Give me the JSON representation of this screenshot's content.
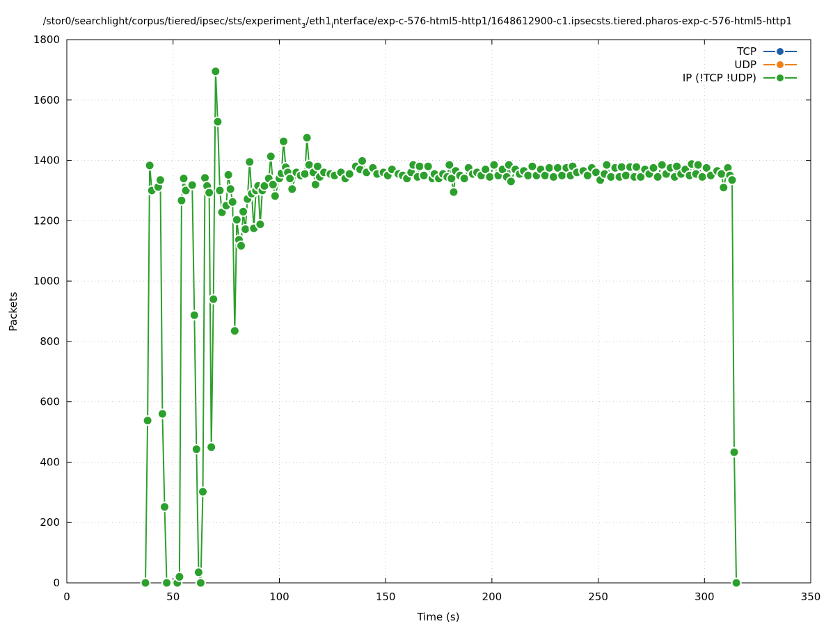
{
  "chart_data": {
    "type": "line",
    "title": "/stor0/searchlight/corpus/tiered/ipsec/sts/experiment",
    "title_sub": "3",
    "title_mid": "/eth1",
    "title_sub2": "i",
    "title_tail": "nterface/exp-c-576-html5-http1/1648612900-c1.ipsecsts.tiered.pharos-exp-c-576-html5-http1",
    "xlabel": "Time (s)",
    "ylabel": "Packets",
    "xlim": [
      0,
      350
    ],
    "ylim": [
      0,
      1800
    ],
    "x_ticks": [
      "0",
      "50",
      "100",
      "150",
      "200",
      "250",
      "300",
      "350"
    ],
    "y_ticks": [
      "0",
      "200",
      "400",
      "600",
      "800",
      "1000",
      "1200",
      "1400",
      "1600",
      "1800"
    ],
    "grid": true,
    "legend_position": "top-right",
    "series": [
      {
        "name": "TCP",
        "color": "#1f5fa8",
        "points": []
      },
      {
        "name": "UDP",
        "color": "#f07f1a",
        "points": []
      },
      {
        "name": "IP (!TCP  !UDP)",
        "color": "#2ca02c",
        "points": [
          [
            37,
            0
          ],
          [
            38,
            538
          ],
          [
            39,
            1383
          ],
          [
            40,
            1300
          ],
          [
            43,
            1312
          ],
          [
            44,
            1335
          ],
          [
            45,
            560
          ],
          [
            46,
            252
          ],
          [
            47,
            0
          ],
          [
            52,
            0
          ],
          [
            53,
            20
          ],
          [
            54,
            1267
          ],
          [
            55,
            1340
          ],
          [
            56,
            1300
          ],
          [
            59,
            1318
          ],
          [
            60,
            887
          ],
          [
            61,
            443
          ],
          [
            62,
            35
          ],
          [
            63,
            0
          ],
          [
            64,
            302
          ],
          [
            65,
            1342
          ],
          [
            66,
            1315
          ],
          [
            67,
            1293
          ],
          [
            68,
            450
          ],
          [
            69,
            940
          ],
          [
            70,
            1695
          ],
          [
            71,
            1528
          ],
          [
            72,
            1300
          ],
          [
            73,
            1228
          ],
          [
            75,
            1250
          ],
          [
            76,
            1352
          ],
          [
            77,
            1305
          ],
          [
            78,
            1262
          ],
          [
            79,
            835
          ],
          [
            80,
            1203
          ],
          [
            81,
            1137
          ],
          [
            82,
            1117
          ],
          [
            83,
            1230
          ],
          [
            84,
            1172
          ],
          [
            85,
            1272
          ],
          [
            86,
            1395
          ],
          [
            87,
            1290
          ],
          [
            88,
            1175
          ],
          [
            89,
            1300
          ],
          [
            90,
            1315
          ],
          [
            91,
            1188
          ],
          [
            92,
            1300
          ],
          [
            93,
            1315
          ],
          [
            95,
            1340
          ],
          [
            96,
            1413
          ],
          [
            97,
            1320
          ],
          [
            98,
            1282
          ],
          [
            100,
            1340
          ],
          [
            101,
            1357
          ],
          [
            102,
            1463
          ],
          [
            103,
            1377
          ],
          [
            104,
            1360
          ],
          [
            105,
            1340
          ],
          [
            106,
            1305
          ],
          [
            108,
            1360
          ],
          [
            110,
            1350
          ],
          [
            112,
            1355
          ],
          [
            113,
            1475
          ],
          [
            114,
            1385
          ],
          [
            116,
            1360
          ],
          [
            117,
            1320
          ],
          [
            118,
            1380
          ],
          [
            119,
            1345
          ],
          [
            121,
            1360
          ],
          [
            124,
            1355
          ],
          [
            126,
            1350
          ],
          [
            129,
            1360
          ],
          [
            131,
            1340
          ],
          [
            133,
            1355
          ],
          [
            136,
            1380
          ],
          [
            138,
            1370
          ],
          [
            139,
            1398
          ],
          [
            141,
            1360
          ],
          [
            144,
            1375
          ],
          [
            146,
            1355
          ],
          [
            149,
            1360
          ],
          [
            151,
            1350
          ],
          [
            153,
            1370
          ],
          [
            156,
            1355
          ],
          [
            158,
            1350
          ],
          [
            160,
            1340
          ],
          [
            162,
            1360
          ],
          [
            163,
            1385
          ],
          [
            165,
            1345
          ],
          [
            166,
            1380
          ],
          [
            168,
            1350
          ],
          [
            170,
            1380
          ],
          [
            172,
            1340
          ],
          [
            173,
            1355
          ],
          [
            175,
            1340
          ],
          [
            177,
            1355
          ],
          [
            179,
            1345
          ],
          [
            180,
            1385
          ],
          [
            181,
            1340
          ],
          [
            182,
            1295
          ],
          [
            183,
            1365
          ],
          [
            185,
            1350
          ],
          [
            187,
            1340
          ],
          [
            189,
            1375
          ],
          [
            191,
            1355
          ],
          [
            193,
            1360
          ],
          [
            195,
            1350
          ],
          [
            197,
            1370
          ],
          [
            199,
            1345
          ],
          [
            201,
            1385
          ],
          [
            203,
            1350
          ],
          [
            205,
            1370
          ],
          [
            207,
            1345
          ],
          [
            208,
            1385
          ],
          [
            209,
            1330
          ],
          [
            211,
            1370
          ],
          [
            213,
            1355
          ],
          [
            215,
            1365
          ],
          [
            217,
            1350
          ],
          [
            219,
            1380
          ],
          [
            221,
            1350
          ],
          [
            223,
            1370
          ],
          [
            225,
            1350
          ],
          [
            227,
            1375
          ],
          [
            229,
            1345
          ],
          [
            231,
            1375
          ],
          [
            233,
            1350
          ],
          [
            235,
            1375
          ],
          [
            237,
            1350
          ],
          [
            238,
            1380
          ],
          [
            240,
            1360
          ],
          [
            243,
            1365
          ],
          [
            245,
            1350
          ],
          [
            247,
            1375
          ],
          [
            249,
            1360
          ],
          [
            251,
            1335
          ],
          [
            253,
            1355
          ],
          [
            254,
            1385
          ],
          [
            256,
            1345
          ],
          [
            258,
            1375
          ],
          [
            260,
            1345
          ],
          [
            261,
            1378
          ],
          [
            263,
            1350
          ],
          [
            265,
            1378
          ],
          [
            267,
            1345
          ],
          [
            268,
            1378
          ],
          [
            270,
            1345
          ],
          [
            272,
            1370
          ],
          [
            274,
            1355
          ],
          [
            276,
            1375
          ],
          [
            278,
            1345
          ],
          [
            280,
            1385
          ],
          [
            282,
            1355
          ],
          [
            284,
            1375
          ],
          [
            286,
            1345
          ],
          [
            287,
            1380
          ],
          [
            289,
            1355
          ],
          [
            291,
            1370
          ],
          [
            293,
            1350
          ],
          [
            294,
            1388
          ],
          [
            296,
            1355
          ],
          [
            297,
            1385
          ],
          [
            299,
            1345
          ],
          [
            301,
            1375
          ],
          [
            303,
            1350
          ],
          [
            306,
            1365
          ],
          [
            308,
            1355
          ],
          [
            309,
            1310
          ],
          [
            311,
            1375
          ],
          [
            312,
            1350
          ],
          [
            313,
            1335
          ],
          [
            314,
            433
          ],
          [
            315,
            0
          ]
        ]
      }
    ]
  }
}
